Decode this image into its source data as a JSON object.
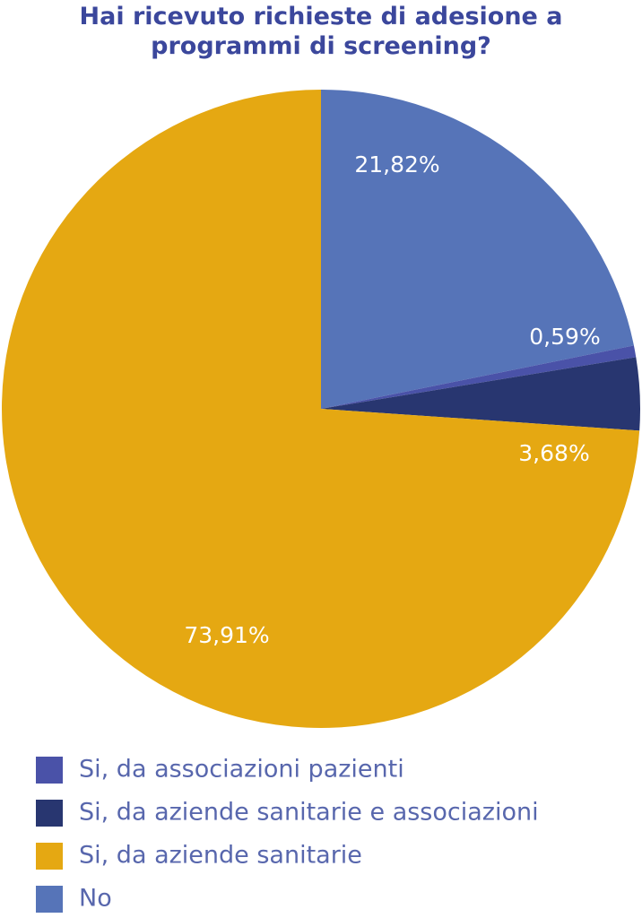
{
  "chart_data": {
    "type": "pie",
    "title": "Hai ricevuto richieste di adesione a programmi di screening?",
    "categories": [
      "Si, da associazioni pazienti",
      "Si, da aziende sanitarie e associazioni",
      "Si, da aziende sanitarie",
      "No"
    ],
    "values": [
      0.59,
      3.68,
      73.91,
      21.82
    ],
    "value_labels": [
      "0,59%",
      "3,68%",
      "73,91%",
      "21,82%"
    ],
    "colors": [
      "#4a52a8",
      "#283670",
      "#e5a812",
      "#5674b8"
    ]
  }
}
